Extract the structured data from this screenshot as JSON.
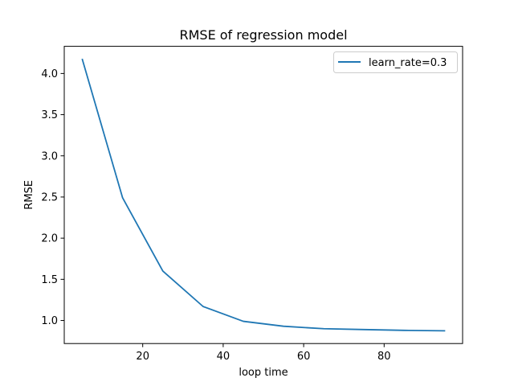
{
  "chart_data": {
    "type": "line",
    "title": "RMSE of regression model",
    "xlabel": "loop time",
    "ylabel": "RMSE",
    "xlim": [
      0.5,
      99.5
    ],
    "ylim": [
      0.72,
      4.33
    ],
    "xticks": [
      20,
      40,
      60,
      80
    ],
    "yticks": [
      1.0,
      1.5,
      2.0,
      2.5,
      3.0,
      3.5,
      4.0
    ],
    "xtick_labels": [
      "20",
      "40",
      "60",
      "80"
    ],
    "ytick_labels": [
      "1.0",
      "1.5",
      "2.0",
      "2.5",
      "3.0",
      "3.5",
      "4.0"
    ],
    "grid": false,
    "legend_position": "top-right",
    "series": [
      {
        "name": "learn_rate=0.3",
        "color": "#1f77b4",
        "x": [
          5,
          15,
          25,
          35,
          45,
          55,
          65,
          75,
          85,
          95
        ],
        "y": [
          4.17,
          2.49,
          1.6,
          1.17,
          0.99,
          0.93,
          0.9,
          0.89,
          0.88,
          0.875
        ]
      }
    ]
  }
}
